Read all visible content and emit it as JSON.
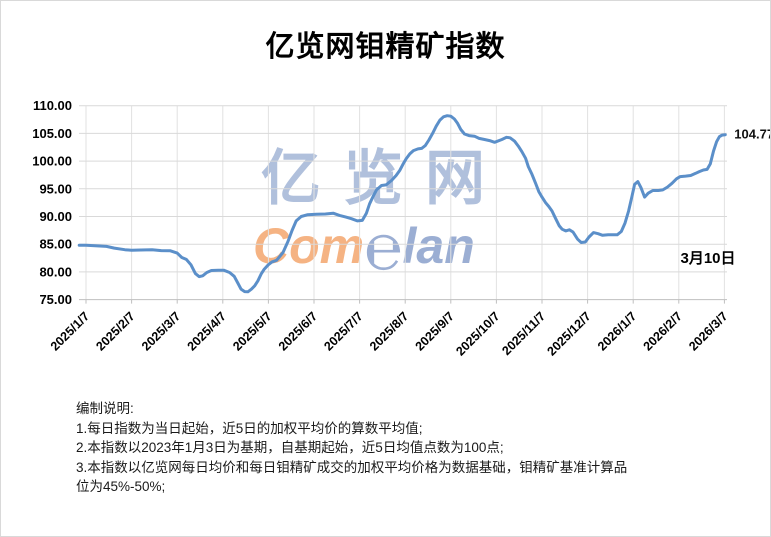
{
  "title": "亿览网钼精矿指数",
  "watermark": {
    "line1": "亿览网",
    "brand_com": "Com",
    "brand_e": "℮",
    "brand_lan": "lan",
    "cn_color": "#708CC0",
    "orange_color": "#F2A064"
  },
  "annotations": {
    "last_value_label": "104.77",
    "date_label": "3月10日"
  },
  "notes": {
    "lines": [
      "编制说明:",
      "1.每日指数为当日起始，近5日的加权平均价的算数平均值;",
      "2.本指数以2023年1月3日为基期，自基期起始，近5日均值点数为100点;",
      "3.本指数以亿览网每日均价和每日钼精矿成交的加权平均价格为数据基础，钼精矿基准计算品",
      "位为45%-50%;"
    ]
  },
  "chart_data": {
    "type": "line",
    "title": "亿览网钼精矿指数",
    "xlabel": "",
    "ylabel": "",
    "ylim": [
      75,
      110
    ],
    "y_tick_step": 5,
    "grid": true,
    "legend_position": "none",
    "line_color": "#5B8FC9",
    "grid_color": "#D9D9D9",
    "vgrid_color": "#E2E2E2",
    "axis_color": "#BFBFBF",
    "x_tick_labels": [
      "2025/1/7",
      "2025/2/7",
      "2025/3/7",
      "2025/4/7",
      "2025/5/7",
      "2025/6/7",
      "2025/7/7",
      "2025/8/7",
      "2025/9/7",
      "2025/10/7",
      "2025/11/7",
      "2025/12/7",
      "2026/1/7",
      "2026/2/7",
      "2026/3/7"
    ],
    "x_unit": "months_since_2025_1_7",
    "last_point": {
      "x": 14.02,
      "value": 104.77,
      "date": "3月10日"
    },
    "series": [
      {
        "name": "钼精矿指数",
        "points": [
          [
            -0.15,
            84.8
          ],
          [
            0,
            84.8
          ],
          [
            0.25,
            84.7
          ],
          [
            0.45,
            84.6
          ],
          [
            0.62,
            84.3
          ],
          [
            0.85,
            84.0
          ],
          [
            1.0,
            83.9
          ],
          [
            1.2,
            83.95
          ],
          [
            1.45,
            84.0
          ],
          [
            1.65,
            83.85
          ],
          [
            1.85,
            83.8
          ],
          [
            2.0,
            83.4
          ],
          [
            2.1,
            82.6
          ],
          [
            2.2,
            82.25
          ],
          [
            2.3,
            81.3
          ],
          [
            2.4,
            79.7
          ],
          [
            2.48,
            79.15
          ],
          [
            2.56,
            79.3
          ],
          [
            2.65,
            79.9
          ],
          [
            2.75,
            80.25
          ],
          [
            2.9,
            80.3
          ],
          [
            3.02,
            80.3
          ],
          [
            3.15,
            79.9
          ],
          [
            3.25,
            79.2
          ],
          [
            3.33,
            78.0
          ],
          [
            3.4,
            76.9
          ],
          [
            3.48,
            76.45
          ],
          [
            3.55,
            76.4
          ],
          [
            3.63,
            76.9
          ],
          [
            3.7,
            77.5
          ],
          [
            3.77,
            78.4
          ],
          [
            3.84,
            79.6
          ],
          [
            3.91,
            80.5
          ],
          [
            4.0,
            81.3
          ],
          [
            4.08,
            81.8
          ],
          [
            4.18,
            82.1
          ],
          [
            4.32,
            83.5
          ],
          [
            4.43,
            85.5
          ],
          [
            4.52,
            87.5
          ],
          [
            4.61,
            89.2
          ],
          [
            4.72,
            90.0
          ],
          [
            4.85,
            90.3
          ],
          [
            5.05,
            90.4
          ],
          [
            5.25,
            90.45
          ],
          [
            5.42,
            90.6
          ],
          [
            5.56,
            90.2
          ],
          [
            5.7,
            89.9
          ],
          [
            5.82,
            89.6
          ],
          [
            5.95,
            89.2
          ],
          [
            6.06,
            89.3
          ],
          [
            6.15,
            90.6
          ],
          [
            6.22,
            92.3
          ],
          [
            6.3,
            93.7
          ],
          [
            6.37,
            94.8
          ],
          [
            6.48,
            95.6
          ],
          [
            6.58,
            95.7
          ],
          [
            6.7,
            96.5
          ],
          [
            6.8,
            97.4
          ],
          [
            6.88,
            98.3
          ],
          [
            6.95,
            99.4
          ],
          [
            7.02,
            100.4
          ],
          [
            7.1,
            101.3
          ],
          [
            7.18,
            101.9
          ],
          [
            7.28,
            102.2
          ],
          [
            7.36,
            102.3
          ],
          [
            7.44,
            102.8
          ],
          [
            7.52,
            103.8
          ],
          [
            7.6,
            105.0
          ],
          [
            7.68,
            106.3
          ],
          [
            7.76,
            107.4
          ],
          [
            7.84,
            108.0
          ],
          [
            7.92,
            108.2
          ],
          [
            8.0,
            108.1
          ],
          [
            8.08,
            107.6
          ],
          [
            8.15,
            106.8
          ],
          [
            8.22,
            105.7
          ],
          [
            8.3,
            104.9
          ],
          [
            8.4,
            104.6
          ],
          [
            8.52,
            104.5
          ],
          [
            8.62,
            104.1
          ],
          [
            8.74,
            103.9
          ],
          [
            8.85,
            103.7
          ],
          [
            8.96,
            103.4
          ],
          [
            9.12,
            103.9
          ],
          [
            9.22,
            104.3
          ],
          [
            9.3,
            104.2
          ],
          [
            9.4,
            103.6
          ],
          [
            9.48,
            102.7
          ],
          [
            9.56,
            101.7
          ],
          [
            9.64,
            100.5
          ],
          [
            9.7,
            99.0
          ],
          [
            9.78,
            97.6
          ],
          [
            9.86,
            96.0
          ],
          [
            9.93,
            94.5
          ],
          [
            10.0,
            93.5
          ],
          [
            10.08,
            92.5
          ],
          [
            10.15,
            91.8
          ],
          [
            10.22,
            91.0
          ],
          [
            10.3,
            89.6
          ],
          [
            10.38,
            88.3
          ],
          [
            10.44,
            87.7
          ],
          [
            10.52,
            87.4
          ],
          [
            10.6,
            87.6
          ],
          [
            10.68,
            87.2
          ],
          [
            10.78,
            85.9
          ],
          [
            10.86,
            85.3
          ],
          [
            10.95,
            85.4
          ],
          [
            11.03,
            86.3
          ],
          [
            11.13,
            87.1
          ],
          [
            11.23,
            86.9
          ],
          [
            11.33,
            86.6
          ],
          [
            11.45,
            86.7
          ],
          [
            11.58,
            86.7
          ],
          [
            11.65,
            86.7
          ],
          [
            11.74,
            87.3
          ],
          [
            11.82,
            88.8
          ],
          [
            11.9,
            91.0
          ],
          [
            11.97,
            93.5
          ],
          [
            12.03,
            95.8
          ],
          [
            12.1,
            96.3
          ],
          [
            12.17,
            95.2
          ],
          [
            12.25,
            93.5
          ],
          [
            12.33,
            94.2
          ],
          [
            12.43,
            94.7
          ],
          [
            12.55,
            94.7
          ],
          [
            12.65,
            94.8
          ],
          [
            12.75,
            95.3
          ],
          [
            12.85,
            96.0
          ],
          [
            12.95,
            96.8
          ],
          [
            13.03,
            97.2
          ],
          [
            13.15,
            97.3
          ],
          [
            13.26,
            97.4
          ],
          [
            13.37,
            97.8
          ],
          [
            13.45,
            98.1
          ],
          [
            13.54,
            98.4
          ],
          [
            13.62,
            98.5
          ],
          [
            13.69,
            99.5
          ],
          [
            13.76,
            101.8
          ],
          [
            13.83,
            103.5
          ],
          [
            13.89,
            104.4
          ],
          [
            13.95,
            104.7
          ],
          [
            14.02,
            104.77
          ]
        ]
      }
    ]
  }
}
